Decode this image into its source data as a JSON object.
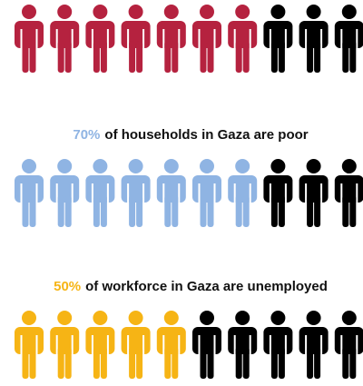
{
  "chart_data": {
    "type": "pictogram",
    "icons_per_row": 10,
    "rest_color": "#000000",
    "rows": [
      {
        "value": 70,
        "color": "#b5223f"
      },
      {
        "value": 70,
        "value_label": "70%",
        "text": "of households in Gaza are poor",
        "color": "#8fb4e3"
      },
      {
        "value": 50,
        "value_label": "50%",
        "text": "of workforce in Gaza are unemployed",
        "color": "#f6b415"
      }
    ]
  }
}
